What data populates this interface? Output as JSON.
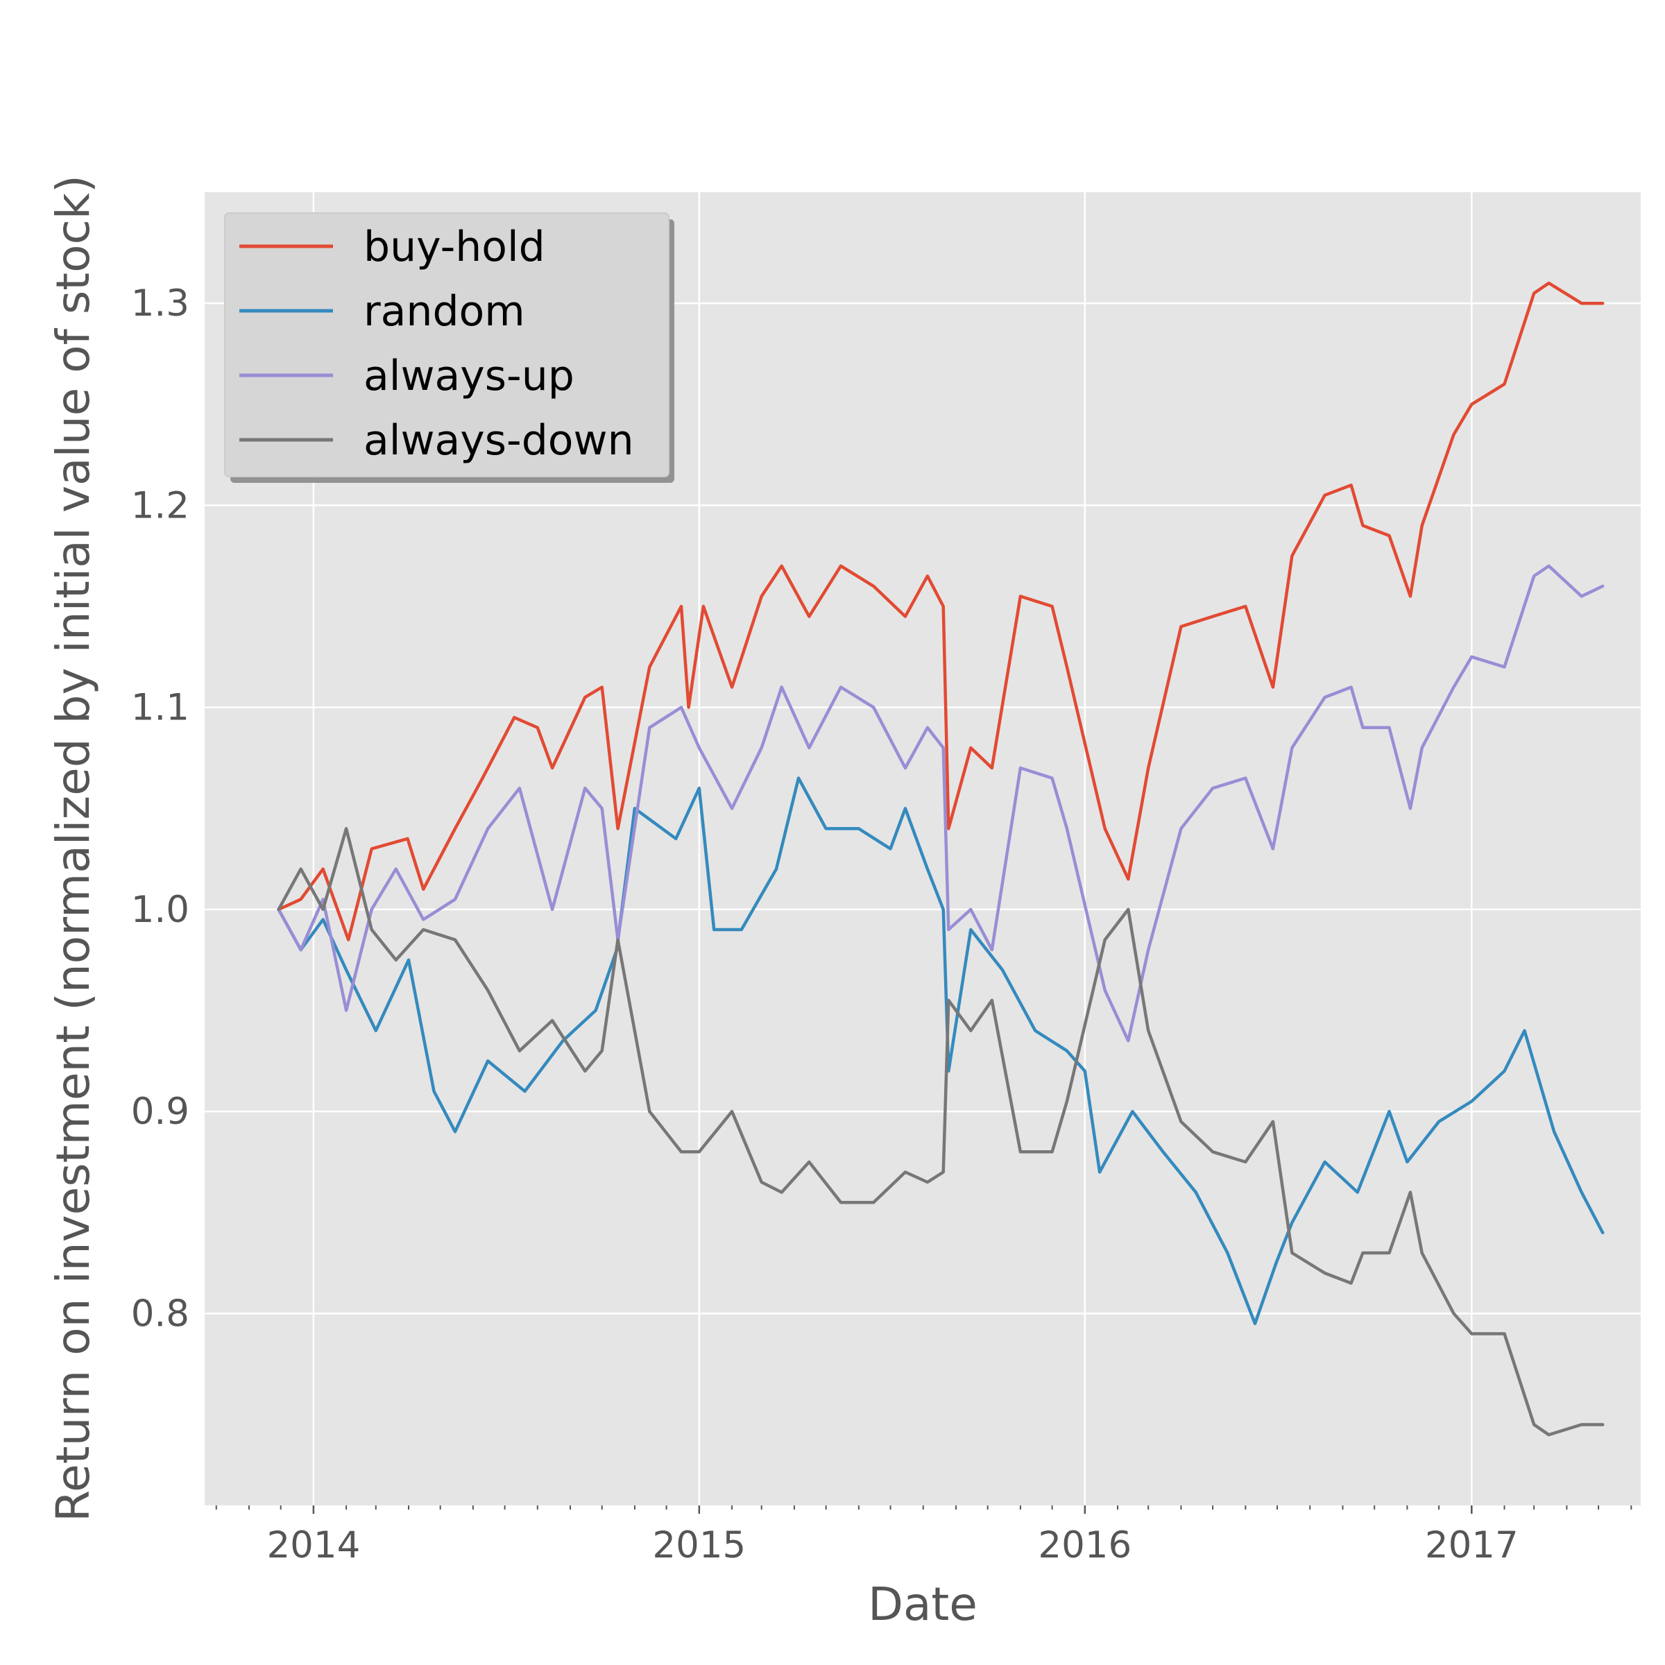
{
  "chart_data": {
    "type": "line",
    "title": "",
    "xlabel": "Date",
    "ylabel": "Return on investment (normalized by initial value of stock)",
    "xlim": [
      "2013-09-20",
      "2017-06-10"
    ],
    "ylim": [
      0.705,
      1.355
    ],
    "x_ticks": [
      {
        "date": "2014-01-01",
        "label": "2014"
      },
      {
        "date": "2015-01-01",
        "label": "2015"
      },
      {
        "date": "2016-01-01",
        "label": "2016"
      },
      {
        "date": "2017-01-01",
        "label": "2017"
      }
    ],
    "y_ticks": [
      {
        "value": 0.8,
        "label": "0.8"
      },
      {
        "value": 0.9,
        "label": "0.9"
      },
      {
        "value": 1.0,
        "label": "1.0"
      },
      {
        "value": 1.1,
        "label": "1.1"
      },
      {
        "value": 1.2,
        "label": "1.2"
      },
      {
        "value": 1.3,
        "label": "1.3"
      }
    ],
    "grid": true,
    "legend": "top-left",
    "background": "#e5e5e5",
    "series": [
      {
        "name": "buy-hold",
        "color": "#e24a33",
        "points": [
          [
            "2013-11-29",
            1.0
          ],
          [
            "2013-12-20",
            1.005
          ],
          [
            "2014-01-10",
            1.02
          ],
          [
            "2014-02-03",
            0.985
          ],
          [
            "2014-02-25",
            1.03
          ],
          [
            "2014-03-31",
            1.035
          ],
          [
            "2014-04-15",
            1.01
          ],
          [
            "2014-05-15",
            1.04
          ],
          [
            "2014-06-10",
            1.065
          ],
          [
            "2014-07-10",
            1.095
          ],
          [
            "2014-08-01",
            1.09
          ],
          [
            "2014-08-15",
            1.07
          ],
          [
            "2014-09-15",
            1.105
          ],
          [
            "2014-10-01",
            1.11
          ],
          [
            "2014-10-16",
            1.04
          ],
          [
            "2014-11-15",
            1.12
          ],
          [
            "2014-12-15",
            1.15
          ],
          [
            "2014-12-22",
            1.1
          ],
          [
            "2015-01-05",
            1.15
          ],
          [
            "2015-02-01",
            1.11
          ],
          [
            "2015-03-01",
            1.155
          ],
          [
            "2015-03-20",
            1.17
          ],
          [
            "2015-04-15",
            1.145
          ],
          [
            "2015-05-15",
            1.17
          ],
          [
            "2015-06-15",
            1.16
          ],
          [
            "2015-07-15",
            1.145
          ],
          [
            "2015-08-05",
            1.165
          ],
          [
            "2015-08-20",
            1.15
          ],
          [
            "2015-08-25",
            1.04
          ],
          [
            "2015-09-15",
            1.08
          ],
          [
            "2015-10-05",
            1.07
          ],
          [
            "2015-11-01",
            1.155
          ],
          [
            "2015-12-01",
            1.15
          ],
          [
            "2015-12-15",
            1.12
          ],
          [
            "2016-01-20",
            1.04
          ],
          [
            "2016-02-11",
            1.015
          ],
          [
            "2016-03-01",
            1.07
          ],
          [
            "2016-04-01",
            1.14
          ],
          [
            "2016-05-01",
            1.145
          ],
          [
            "2016-06-01",
            1.15
          ],
          [
            "2016-06-27",
            1.11
          ],
          [
            "2016-07-15",
            1.175
          ],
          [
            "2016-08-15",
            1.205
          ],
          [
            "2016-09-09",
            1.21
          ],
          [
            "2016-09-20",
            1.19
          ],
          [
            "2016-10-15",
            1.185
          ],
          [
            "2016-11-04",
            1.155
          ],
          [
            "2016-11-15",
            1.19
          ],
          [
            "2016-12-15",
            1.235
          ],
          [
            "2017-01-01",
            1.25
          ],
          [
            "2017-02-01",
            1.26
          ],
          [
            "2017-03-01",
            1.305
          ],
          [
            "2017-03-15",
            1.31
          ],
          [
            "2017-04-15",
            1.3
          ],
          [
            "2017-05-05",
            1.3
          ]
        ]
      },
      {
        "name": "random",
        "color": "#348abd",
        "points": [
          [
            "2013-11-29",
            1.0
          ],
          [
            "2013-12-20",
            0.98
          ],
          [
            "2014-01-10",
            0.995
          ],
          [
            "2014-02-01",
            0.97
          ],
          [
            "2014-03-01",
            0.94
          ],
          [
            "2014-04-01",
            0.975
          ],
          [
            "2014-04-25",
            0.91
          ],
          [
            "2014-05-15",
            0.89
          ],
          [
            "2014-06-15",
            0.925
          ],
          [
            "2014-07-20",
            0.91
          ],
          [
            "2014-08-25",
            0.935
          ],
          [
            "2014-09-25",
            0.95
          ],
          [
            "2014-10-15",
            0.98
          ],
          [
            "2014-11-01",
            1.05
          ],
          [
            "2014-12-10",
            1.035
          ],
          [
            "2015-01-01",
            1.06
          ],
          [
            "2015-01-15",
            0.99
          ],
          [
            "2015-02-10",
            0.99
          ],
          [
            "2015-03-15",
            1.02
          ],
          [
            "2015-04-05",
            1.065
          ],
          [
            "2015-05-01",
            1.04
          ],
          [
            "2015-06-01",
            1.04
          ],
          [
            "2015-07-01",
            1.03
          ],
          [
            "2015-07-15",
            1.05
          ],
          [
            "2015-08-05",
            1.02
          ],
          [
            "2015-08-20",
            1.0
          ],
          [
            "2015-08-25",
            0.92
          ],
          [
            "2015-09-15",
            0.99
          ],
          [
            "2015-10-15",
            0.97
          ],
          [
            "2015-11-15",
            0.94
          ],
          [
            "2015-12-15",
            0.93
          ],
          [
            "2016-01-01",
            0.92
          ],
          [
            "2016-01-15",
            0.87
          ],
          [
            "2016-02-15",
            0.9
          ],
          [
            "2016-03-15",
            0.88
          ],
          [
            "2016-04-15",
            0.86
          ],
          [
            "2016-05-15",
            0.83
          ],
          [
            "2016-06-10",
            0.795
          ],
          [
            "2016-06-30",
            0.825
          ],
          [
            "2016-07-15",
            0.845
          ],
          [
            "2016-08-15",
            0.875
          ],
          [
            "2016-09-15",
            0.86
          ],
          [
            "2016-10-15",
            0.9
          ],
          [
            "2016-11-01",
            0.875
          ],
          [
            "2016-12-01",
            0.895
          ],
          [
            "2017-01-01",
            0.905
          ],
          [
            "2017-02-01",
            0.92
          ],
          [
            "2017-02-20",
            0.94
          ],
          [
            "2017-03-20",
            0.89
          ],
          [
            "2017-04-15",
            0.86
          ],
          [
            "2017-05-05",
            0.84
          ]
        ]
      },
      {
        "name": "always-up",
        "color": "#988ed5",
        "points": [
          [
            "2013-11-29",
            1.0
          ],
          [
            "2013-12-20",
            0.98
          ],
          [
            "2014-01-10",
            1.005
          ],
          [
            "2014-02-01",
            0.95
          ],
          [
            "2014-02-25",
            1.0
          ],
          [
            "2014-03-20",
            1.02
          ],
          [
            "2014-04-15",
            0.995
          ],
          [
            "2014-05-15",
            1.005
          ],
          [
            "2014-06-15",
            1.04
          ],
          [
            "2014-07-15",
            1.06
          ],
          [
            "2014-08-15",
            1.0
          ],
          [
            "2014-09-15",
            1.06
          ],
          [
            "2014-10-01",
            1.05
          ],
          [
            "2014-10-16",
            0.985
          ],
          [
            "2014-11-15",
            1.09
          ],
          [
            "2014-12-15",
            1.1
          ],
          [
            "2015-01-01",
            1.08
          ],
          [
            "2015-02-01",
            1.05
          ],
          [
            "2015-03-01",
            1.08
          ],
          [
            "2015-03-20",
            1.11
          ],
          [
            "2015-04-15",
            1.08
          ],
          [
            "2015-05-15",
            1.11
          ],
          [
            "2015-06-15",
            1.1
          ],
          [
            "2015-07-15",
            1.07
          ],
          [
            "2015-08-05",
            1.09
          ],
          [
            "2015-08-20",
            1.08
          ],
          [
            "2015-08-25",
            0.99
          ],
          [
            "2015-09-15",
            1.0
          ],
          [
            "2015-10-05",
            0.98
          ],
          [
            "2015-11-01",
            1.07
          ],
          [
            "2015-12-01",
            1.065
          ],
          [
            "2015-12-15",
            1.04
          ],
          [
            "2016-01-20",
            0.96
          ],
          [
            "2016-02-11",
            0.935
          ],
          [
            "2016-03-01",
            0.98
          ],
          [
            "2016-04-01",
            1.04
          ],
          [
            "2016-05-01",
            1.06
          ],
          [
            "2016-06-01",
            1.065
          ],
          [
            "2016-06-27",
            1.03
          ],
          [
            "2016-07-15",
            1.08
          ],
          [
            "2016-08-15",
            1.105
          ],
          [
            "2016-09-09",
            1.11
          ],
          [
            "2016-09-20",
            1.09
          ],
          [
            "2016-10-15",
            1.09
          ],
          [
            "2016-11-04",
            1.05
          ],
          [
            "2016-11-15",
            1.08
          ],
          [
            "2016-12-15",
            1.11
          ],
          [
            "2017-01-01",
            1.125
          ],
          [
            "2017-02-01",
            1.12
          ],
          [
            "2017-03-01",
            1.165
          ],
          [
            "2017-03-15",
            1.17
          ],
          [
            "2017-04-15",
            1.155
          ],
          [
            "2017-05-05",
            1.16
          ]
        ]
      },
      {
        "name": "always-down",
        "color": "#777777",
        "points": [
          [
            "2013-11-29",
            1.0
          ],
          [
            "2013-12-20",
            1.02
          ],
          [
            "2014-01-10",
            1.0
          ],
          [
            "2014-02-01",
            1.04
          ],
          [
            "2014-02-25",
            0.99
          ],
          [
            "2014-03-20",
            0.975
          ],
          [
            "2014-04-15",
            0.99
          ],
          [
            "2014-05-15",
            0.985
          ],
          [
            "2014-06-15",
            0.96
          ],
          [
            "2014-07-15",
            0.93
          ],
          [
            "2014-08-15",
            0.945
          ],
          [
            "2014-09-15",
            0.92
          ],
          [
            "2014-10-01",
            0.93
          ],
          [
            "2014-10-16",
            0.985
          ],
          [
            "2014-11-15",
            0.9
          ],
          [
            "2014-12-15",
            0.88
          ],
          [
            "2015-01-01",
            0.88
          ],
          [
            "2015-02-01",
            0.9
          ],
          [
            "2015-03-01",
            0.865
          ],
          [
            "2015-03-20",
            0.86
          ],
          [
            "2015-04-15",
            0.875
          ],
          [
            "2015-05-15",
            0.855
          ],
          [
            "2015-06-15",
            0.855
          ],
          [
            "2015-07-15",
            0.87
          ],
          [
            "2015-08-05",
            0.865
          ],
          [
            "2015-08-20",
            0.87
          ],
          [
            "2015-08-25",
            0.955
          ],
          [
            "2015-09-15",
            0.94
          ],
          [
            "2015-10-05",
            0.955
          ],
          [
            "2015-11-01",
            0.88
          ],
          [
            "2015-12-01",
            0.88
          ],
          [
            "2015-12-15",
            0.905
          ],
          [
            "2016-01-20",
            0.985
          ],
          [
            "2016-02-11",
            1.0
          ],
          [
            "2016-03-01",
            0.94
          ],
          [
            "2016-04-01",
            0.895
          ],
          [
            "2016-05-01",
            0.88
          ],
          [
            "2016-06-01",
            0.875
          ],
          [
            "2016-06-27",
            0.895
          ],
          [
            "2016-07-15",
            0.83
          ],
          [
            "2016-08-15",
            0.82
          ],
          [
            "2016-09-09",
            0.815
          ],
          [
            "2016-09-20",
            0.83
          ],
          [
            "2016-10-15",
            0.83
          ],
          [
            "2016-11-04",
            0.86
          ],
          [
            "2016-11-15",
            0.83
          ],
          [
            "2016-12-15",
            0.8
          ],
          [
            "2017-01-01",
            0.79
          ],
          [
            "2017-02-01",
            0.79
          ],
          [
            "2017-03-01",
            0.745
          ],
          [
            "2017-03-15",
            0.74
          ],
          [
            "2017-04-15",
            0.745
          ],
          [
            "2017-05-05",
            0.745
          ]
        ]
      }
    ]
  }
}
